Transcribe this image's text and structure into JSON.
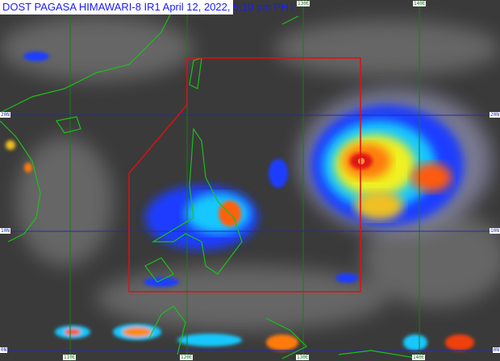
{
  "title": "DOST PAGASA HIMAWARI-8 IR1 April 12, 2022, 5:10 pm PHT",
  "grid": {
    "longitudes": [
      "110E",
      "120E",
      "130E",
      "140E"
    ],
    "latitudes": [
      "20N",
      "10N",
      "0N"
    ]
  },
  "colors": {
    "background": "#3a3a3a",
    "coastline": "#19c119",
    "longitude_lines": "#1a7a1a",
    "latitude_lines": "#2a2aa0",
    "par_boundary": "#e01010",
    "title_text": "#1a1aff"
  }
}
